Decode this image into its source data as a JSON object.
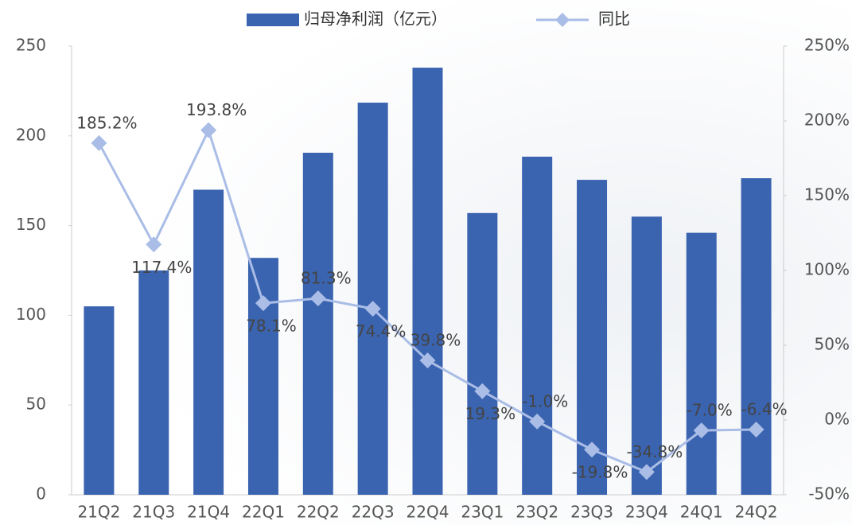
{
  "chart_data": {
    "type": "bar-line",
    "categories": [
      "21Q2",
      "21Q3",
      "21Q4",
      "22Q1",
      "22Q2",
      "22Q3",
      "22Q4",
      "23Q1",
      "23Q2",
      "23Q3",
      "23Q4",
      "24Q1",
      "24Q2"
    ],
    "series": [
      {
        "name": "归母净利润（亿元）",
        "type": "bar",
        "color": "#3a63b0",
        "values": [
          105,
          125,
          170,
          132,
          190.6,
          218.5,
          238,
          157,
          188.4,
          175.5,
          155,
          146,
          176.4
        ]
      },
      {
        "name": "同比",
        "type": "line",
        "axis": "y2",
        "color": "#a9bde6",
        "values": [
          185.2,
          117.4,
          193.8,
          78.1,
          81.3,
          74.4,
          39.8,
          19.3,
          -1.0,
          -19.8,
          -34.8,
          -7.0,
          -6.4
        ],
        "value_labels": [
          "185.2%",
          "117.4%",
          "193.8%",
          "78.1%",
          "81.3%",
          "74.4%",
          "39.8%",
          "19.3%",
          "-1.0%",
          "-19.8%",
          "-34.8%",
          "-7.0%",
          "-6.4%"
        ]
      }
    ],
    "ylim": [
      0,
      250
    ],
    "yticks": [
      0,
      50,
      100,
      150,
      200,
      250
    ],
    "y2lim": [
      -50,
      250
    ],
    "y2ticks": [
      {
        "value": -50,
        "label": "-50%"
      },
      {
        "value": 0,
        "label": "0%"
      },
      {
        "value": 50,
        "label": "50%"
      },
      {
        "value": 100,
        "label": "100%"
      },
      {
        "value": 150,
        "label": "150%"
      },
      {
        "value": 200,
        "label": "200%"
      },
      {
        "value": 250,
        "label": "250%"
      }
    ],
    "legend": "top"
  }
}
